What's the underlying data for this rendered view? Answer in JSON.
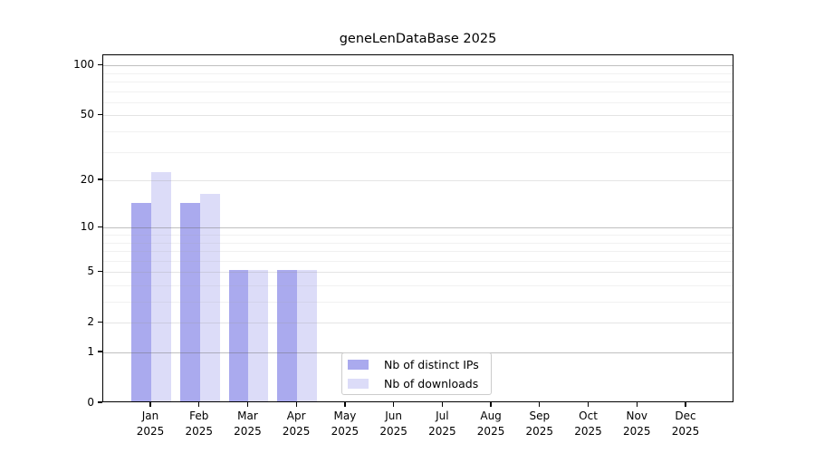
{
  "title": "geneLenDataBase 2025",
  "chart_data": {
    "type": "bar",
    "title": "geneLenDataBase 2025",
    "categories": [
      "Jan",
      "Feb",
      "Mar",
      "Apr",
      "May",
      "Jun",
      "Jul",
      "Aug",
      "Sep",
      "Oct",
      "Nov",
      "Dec"
    ],
    "category_year": "2025",
    "series": [
      {
        "name": "Nb of distinct IPs",
        "color": "#aaaaee",
        "values": [
          14,
          14,
          5,
          5,
          0,
          0,
          0,
          0,
          0,
          0,
          0,
          0
        ]
      },
      {
        "name": "Nb of downloads",
        "color": "#dcdcf8",
        "values": [
          22,
          16,
          5,
          5,
          0,
          0,
          0,
          0,
          0,
          0,
          0,
          0
        ]
      }
    ],
    "yscale": "log1p",
    "ylim": [
      0,
      115
    ],
    "yticks": [
      0,
      1,
      2,
      5,
      10,
      20,
      50,
      100
    ],
    "yticks_decade": [
      1,
      10,
      100
    ],
    "yticks_minor": [
      3,
      4,
      6,
      7,
      8,
      9,
      30,
      40,
      60,
      70,
      80,
      90
    ],
    "grid": "horizontal",
    "legend": {
      "position": "inside-bottom-center"
    }
  }
}
